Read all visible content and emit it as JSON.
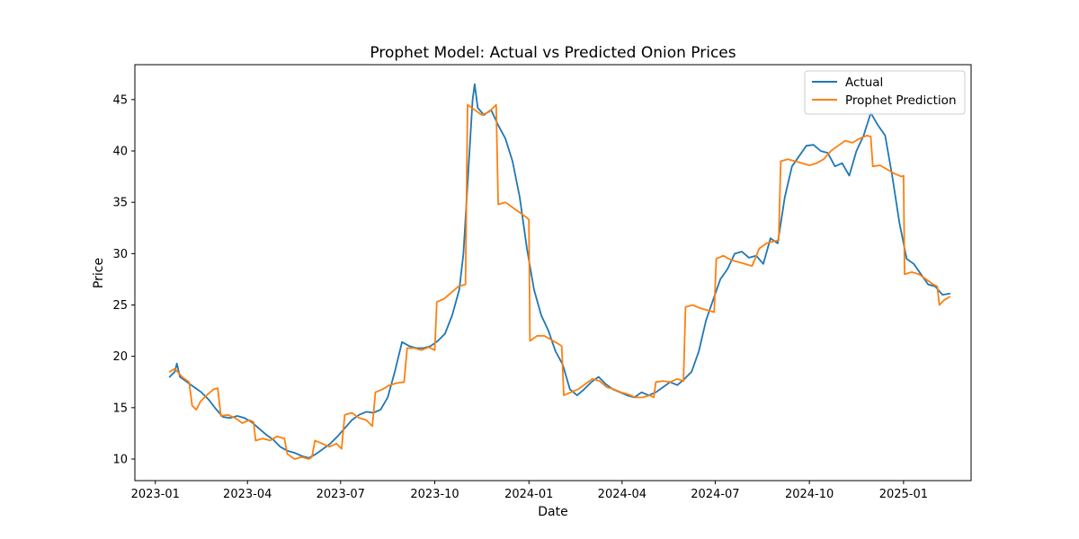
{
  "chart_data": {
    "type": "line",
    "title": "Prophet Model: Actual vs Predicted Onion Prices",
    "xlabel": "Date",
    "ylabel": "Price",
    "xlim": [
      "2022-12-12",
      "2025-03-08"
    ],
    "ylim": [
      7.9,
      48.4
    ],
    "x_ticks": [
      {
        "date": "2023-01-01",
        "label": "2023-01"
      },
      {
        "date": "2023-04-01",
        "label": "2023-04"
      },
      {
        "date": "2023-07-01",
        "label": "2023-07"
      },
      {
        "date": "2023-10-01",
        "label": "2023-10"
      },
      {
        "date": "2024-01-01",
        "label": "2024-01"
      },
      {
        "date": "2024-04-01",
        "label": "2024-04"
      },
      {
        "date": "2024-07-01",
        "label": "2024-07"
      },
      {
        "date": "2024-10-01",
        "label": "2024-10"
      },
      {
        "date": "2025-01-01",
        "label": "2025-01"
      }
    ],
    "y_ticks": [
      10,
      15,
      20,
      25,
      30,
      35,
      40,
      45
    ],
    "grid": false,
    "legend": {
      "placement": "top-right"
    },
    "series": [
      {
        "name": "Actual",
        "color": "#1f77b4",
        "points": [
          [
            "2023-01-15",
            18.0
          ],
          [
            "2023-01-20",
            18.5
          ],
          [
            "2023-01-22",
            19.3
          ],
          [
            "2023-01-25",
            18.0
          ],
          [
            "2023-02-01",
            17.5
          ],
          [
            "2023-02-08",
            17.0
          ],
          [
            "2023-02-15",
            16.5
          ],
          [
            "2023-02-22",
            15.8
          ],
          [
            "2023-03-01",
            14.9
          ],
          [
            "2023-03-08",
            14.1
          ],
          [
            "2023-03-15",
            14.0
          ],
          [
            "2023-03-22",
            14.2
          ],
          [
            "2023-03-29",
            14.0
          ],
          [
            "2023-04-05",
            13.6
          ],
          [
            "2023-04-12",
            13.0
          ],
          [
            "2023-04-19",
            12.4
          ],
          [
            "2023-04-26",
            11.9
          ],
          [
            "2023-05-03",
            11.2
          ],
          [
            "2023-05-10",
            10.8
          ],
          [
            "2023-05-17",
            10.6
          ],
          [
            "2023-05-24",
            10.3
          ],
          [
            "2023-05-31",
            10.1
          ],
          [
            "2023-06-07",
            10.5
          ],
          [
            "2023-06-14",
            11.0
          ],
          [
            "2023-06-21",
            11.5
          ],
          [
            "2023-06-28",
            12.2
          ],
          [
            "2023-07-05",
            13.0
          ],
          [
            "2023-07-12",
            13.8
          ],
          [
            "2023-07-19",
            14.3
          ],
          [
            "2023-07-26",
            14.6
          ],
          [
            "2023-08-02",
            14.5
          ],
          [
            "2023-08-09",
            14.8
          ],
          [
            "2023-08-16",
            16.0
          ],
          [
            "2023-08-23",
            18.5
          ],
          [
            "2023-08-30",
            21.4
          ],
          [
            "2023-09-06",
            21.0
          ],
          [
            "2023-09-13",
            20.8
          ],
          [
            "2023-09-20",
            20.8
          ],
          [
            "2023-09-27",
            21.0
          ],
          [
            "2023-10-04",
            21.5
          ],
          [
            "2023-10-11",
            22.2
          ],
          [
            "2023-10-18",
            24.0
          ],
          [
            "2023-10-25",
            26.5
          ],
          [
            "2023-10-29",
            30.0
          ],
          [
            "2023-11-01",
            35.0
          ],
          [
            "2023-11-04",
            40.0
          ],
          [
            "2023-11-07",
            45.0
          ],
          [
            "2023-11-09",
            46.5
          ],
          [
            "2023-11-12",
            44.2
          ],
          [
            "2023-11-18",
            43.5
          ],
          [
            "2023-11-25",
            44.0
          ],
          [
            "2023-12-02",
            42.5
          ],
          [
            "2023-12-09",
            41.2
          ],
          [
            "2023-12-16",
            39.0
          ],
          [
            "2023-12-23",
            35.5
          ],
          [
            "2023-12-30",
            30.5
          ],
          [
            "2024-01-06",
            26.5
          ],
          [
            "2024-01-13",
            24.0
          ],
          [
            "2024-01-20",
            22.5
          ],
          [
            "2024-01-27",
            20.5
          ],
          [
            "2024-02-03",
            19.2
          ],
          [
            "2024-02-10",
            16.8
          ],
          [
            "2024-02-17",
            16.2
          ],
          [
            "2024-02-24",
            16.8
          ],
          [
            "2024-03-02",
            17.5
          ],
          [
            "2024-03-09",
            18.0
          ],
          [
            "2024-03-16",
            17.3
          ],
          [
            "2024-03-23",
            16.8
          ],
          [
            "2024-03-30",
            16.5
          ],
          [
            "2024-04-06",
            16.2
          ],
          [
            "2024-04-13",
            16.0
          ],
          [
            "2024-04-20",
            16.5
          ],
          [
            "2024-04-27",
            16.2
          ],
          [
            "2024-05-04",
            16.5
          ],
          [
            "2024-05-11",
            17.0
          ],
          [
            "2024-05-18",
            17.5
          ],
          [
            "2024-05-25",
            17.2
          ],
          [
            "2024-06-01",
            17.8
          ],
          [
            "2024-06-08",
            18.5
          ],
          [
            "2024-06-15",
            20.5
          ],
          [
            "2024-06-22",
            23.5
          ],
          [
            "2024-06-29",
            25.5
          ],
          [
            "2024-07-06",
            27.5
          ],
          [
            "2024-07-13",
            28.5
          ],
          [
            "2024-07-20",
            30.0
          ],
          [
            "2024-07-27",
            30.2
          ],
          [
            "2024-08-03",
            29.6
          ],
          [
            "2024-08-10",
            29.8
          ],
          [
            "2024-08-17",
            29.0
          ],
          [
            "2024-08-24",
            31.5
          ],
          [
            "2024-08-31",
            31.0
          ],
          [
            "2024-09-07",
            35.5
          ],
          [
            "2024-09-14",
            38.5
          ],
          [
            "2024-09-21",
            39.5
          ],
          [
            "2024-09-28",
            40.5
          ],
          [
            "2024-10-05",
            40.6
          ],
          [
            "2024-10-12",
            40.0
          ],
          [
            "2024-10-19",
            39.8
          ],
          [
            "2024-10-26",
            38.5
          ],
          [
            "2024-11-02",
            38.8
          ],
          [
            "2024-11-09",
            37.6
          ],
          [
            "2024-11-16",
            40.0
          ],
          [
            "2024-11-23",
            41.5
          ],
          [
            "2024-11-30",
            43.7
          ],
          [
            "2024-12-07",
            42.5
          ],
          [
            "2024-12-14",
            41.5
          ],
          [
            "2024-12-21",
            37.5
          ],
          [
            "2024-12-28",
            33.0
          ],
          [
            "2025-01-01",
            31.0
          ],
          [
            "2025-01-04",
            29.5
          ],
          [
            "2025-01-11",
            29.0
          ],
          [
            "2025-01-18",
            28.0
          ],
          [
            "2025-01-25",
            27.0
          ],
          [
            "2025-02-01",
            26.8
          ],
          [
            "2025-02-08",
            26.0
          ],
          [
            "2025-02-15",
            26.1
          ]
        ]
      },
      {
        "name": "Prophet Prediction",
        "color": "#ff7f0e",
        "points": [
          [
            "2023-01-15",
            18.5
          ],
          [
            "2023-01-20",
            18.8
          ],
          [
            "2023-01-27",
            18.0
          ],
          [
            "2023-02-03",
            17.5
          ],
          [
            "2023-02-06",
            15.2
          ],
          [
            "2023-02-10",
            14.8
          ],
          [
            "2023-02-14",
            15.6
          ],
          [
            "2023-02-20",
            16.2
          ],
          [
            "2023-02-27",
            16.8
          ],
          [
            "2023-03-03",
            16.9
          ],
          [
            "2023-03-06",
            14.2
          ],
          [
            "2023-03-13",
            14.3
          ],
          [
            "2023-03-20",
            14.0
          ],
          [
            "2023-03-27",
            13.5
          ],
          [
            "2023-04-03",
            13.8
          ],
          [
            "2023-04-07",
            13.6
          ],
          [
            "2023-04-09",
            11.8
          ],
          [
            "2023-04-16",
            12.0
          ],
          [
            "2023-04-23",
            11.8
          ],
          [
            "2023-04-30",
            12.2
          ],
          [
            "2023-05-07",
            12.0
          ],
          [
            "2023-05-10",
            10.5
          ],
          [
            "2023-05-17",
            10.0
          ],
          [
            "2023-05-24",
            10.2
          ],
          [
            "2023-05-31",
            10.0
          ],
          [
            "2023-06-03",
            10.2
          ],
          [
            "2023-06-06",
            11.8
          ],
          [
            "2023-06-13",
            11.5
          ],
          [
            "2023-06-20",
            11.2
          ],
          [
            "2023-06-27",
            11.5
          ],
          [
            "2023-07-02",
            11.0
          ],
          [
            "2023-07-05",
            14.3
          ],
          [
            "2023-07-12",
            14.5
          ],
          [
            "2023-07-19",
            14.0
          ],
          [
            "2023-07-26",
            13.8
          ],
          [
            "2023-08-01",
            13.2
          ],
          [
            "2023-08-04",
            16.5
          ],
          [
            "2023-08-11",
            16.8
          ],
          [
            "2023-08-18",
            17.2
          ],
          [
            "2023-08-25",
            17.4
          ],
          [
            "2023-09-01",
            17.5
          ],
          [
            "2023-09-04",
            20.8
          ],
          [
            "2023-09-11",
            20.8
          ],
          [
            "2023-09-18",
            20.6
          ],
          [
            "2023-09-25",
            20.9
          ],
          [
            "2023-10-01",
            20.6
          ],
          [
            "2023-10-03",
            25.3
          ],
          [
            "2023-10-10",
            25.6
          ],
          [
            "2023-10-17",
            26.2
          ],
          [
            "2023-10-24",
            26.8
          ],
          [
            "2023-10-31",
            27.0
          ],
          [
            "2023-11-02",
            44.5
          ],
          [
            "2023-11-09",
            44.0
          ],
          [
            "2023-11-16",
            43.5
          ],
          [
            "2023-11-23",
            43.8
          ],
          [
            "2023-11-30",
            44.5
          ],
          [
            "2023-12-02",
            34.8
          ],
          [
            "2023-12-09",
            35.0
          ],
          [
            "2023-12-16",
            34.5
          ],
          [
            "2023-12-23",
            34.0
          ],
          [
            "2023-12-30",
            33.5
          ],
          [
            "2024-01-01",
            33.3
          ],
          [
            "2024-01-02",
            21.5
          ],
          [
            "2024-01-09",
            22.0
          ],
          [
            "2024-01-16",
            22.0
          ],
          [
            "2024-01-23",
            21.6
          ],
          [
            "2024-01-30",
            21.2
          ],
          [
            "2024-02-02",
            21.0
          ],
          [
            "2024-02-04",
            16.2
          ],
          [
            "2024-02-11",
            16.5
          ],
          [
            "2024-02-18",
            16.8
          ],
          [
            "2024-02-25",
            17.3
          ],
          [
            "2024-03-03",
            17.8
          ],
          [
            "2024-03-10",
            17.6
          ],
          [
            "2024-03-17",
            17.0
          ],
          [
            "2024-03-24",
            16.8
          ],
          [
            "2024-03-31",
            16.5
          ],
          [
            "2024-04-07",
            16.3
          ],
          [
            "2024-04-14",
            16.0
          ],
          [
            "2024-04-21",
            16.0
          ],
          [
            "2024-04-28",
            16.2
          ],
          [
            "2024-05-02",
            16.0
          ],
          [
            "2024-05-04",
            17.5
          ],
          [
            "2024-05-11",
            17.6
          ],
          [
            "2024-05-18",
            17.5
          ],
          [
            "2024-05-25",
            17.8
          ],
          [
            "2024-05-31",
            17.6
          ],
          [
            "2024-06-02",
            24.8
          ],
          [
            "2024-06-09",
            25.0
          ],
          [
            "2024-06-16",
            24.7
          ],
          [
            "2024-06-23",
            24.5
          ],
          [
            "2024-06-30",
            24.3
          ],
          [
            "2024-07-02",
            29.5
          ],
          [
            "2024-07-09",
            29.8
          ],
          [
            "2024-07-16",
            29.4
          ],
          [
            "2024-07-23",
            29.2
          ],
          [
            "2024-07-30",
            29.0
          ],
          [
            "2024-08-06",
            28.8
          ],
          [
            "2024-08-13",
            30.5
          ],
          [
            "2024-08-20",
            31.0
          ],
          [
            "2024-08-27",
            31.2
          ],
          [
            "2024-09-01",
            31.3
          ],
          [
            "2024-09-03",
            39.0
          ],
          [
            "2024-09-10",
            39.2
          ],
          [
            "2024-09-17",
            39.0
          ],
          [
            "2024-09-24",
            38.8
          ],
          [
            "2024-10-01",
            38.6
          ],
          [
            "2024-10-08",
            38.8
          ],
          [
            "2024-10-15",
            39.2
          ],
          [
            "2024-10-22",
            40.0
          ],
          [
            "2024-10-29",
            40.5
          ],
          [
            "2024-11-05",
            41.0
          ],
          [
            "2024-11-12",
            40.8
          ],
          [
            "2024-11-19",
            41.2
          ],
          [
            "2024-11-26",
            41.5
          ],
          [
            "2024-11-30",
            41.4
          ],
          [
            "2024-12-02",
            38.5
          ],
          [
            "2024-12-09",
            38.6
          ],
          [
            "2024-12-16",
            38.2
          ],
          [
            "2024-12-23",
            37.8
          ],
          [
            "2024-12-30",
            37.5
          ],
          [
            "2025-01-01",
            37.6
          ],
          [
            "2025-01-02",
            28.0
          ],
          [
            "2025-01-09",
            28.2
          ],
          [
            "2025-01-16",
            28.0
          ],
          [
            "2025-01-23",
            27.5
          ],
          [
            "2025-01-30",
            27.0
          ],
          [
            "2025-02-03",
            26.8
          ],
          [
            "2025-02-05",
            25.0
          ],
          [
            "2025-02-10",
            25.5
          ],
          [
            "2025-02-15",
            25.8
          ]
        ]
      }
    ]
  }
}
